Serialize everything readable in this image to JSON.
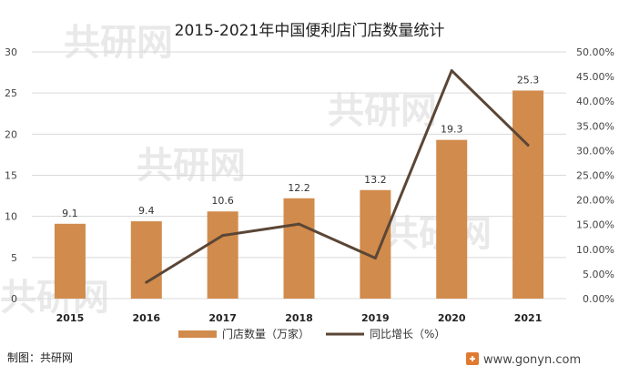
{
  "chart_data": {
    "type": "bar+line",
    "title": "2015-2021年中国便利店门店数量统计",
    "categories": [
      "2015",
      "2016",
      "2017",
      "2018",
      "2019",
      "2020",
      "2021"
    ],
    "series": [
      {
        "name": "门店数量（万家）",
        "type": "bar",
        "axis": "left",
        "color": "#d18b4c",
        "values": [
          9.1,
          9.4,
          10.6,
          12.2,
          13.2,
          19.3,
          25.3
        ],
        "labels": [
          "9.1",
          "9.4",
          "10.6",
          "12.2",
          "13.2",
          "19.3",
          "25.3"
        ]
      },
      {
        "name": "同比增长（%）",
        "type": "line",
        "axis": "right",
        "color": "#5b4636",
        "values": [
          null,
          0.033,
          0.128,
          0.151,
          0.082,
          0.462,
          0.311
        ]
      }
    ],
    "y_left": {
      "range": [
        0,
        30
      ],
      "ticks": [
        "0",
        "5",
        "10",
        "15",
        "20",
        "25",
        "30"
      ]
    },
    "y_right": {
      "range": [
        0,
        0.5
      ],
      "ticks": [
        "0.00%",
        "5.00%",
        "10.00%",
        "15.00%",
        "20.00%",
        "25.00%",
        "30.00%",
        "35.00%",
        "40.00%",
        "45.00%",
        "50.00%"
      ]
    },
    "grid": true,
    "legend_position": "bottom"
  },
  "footer": {
    "source": "制图：共研网",
    "website": "www.gonyn.com"
  },
  "watermark": {
    "text": "共研网"
  },
  "colors": {
    "grid": "#d9d9d9",
    "logo": "#e07a2f"
  },
  "icons": [
    "gonyn-logo-icon"
  ]
}
